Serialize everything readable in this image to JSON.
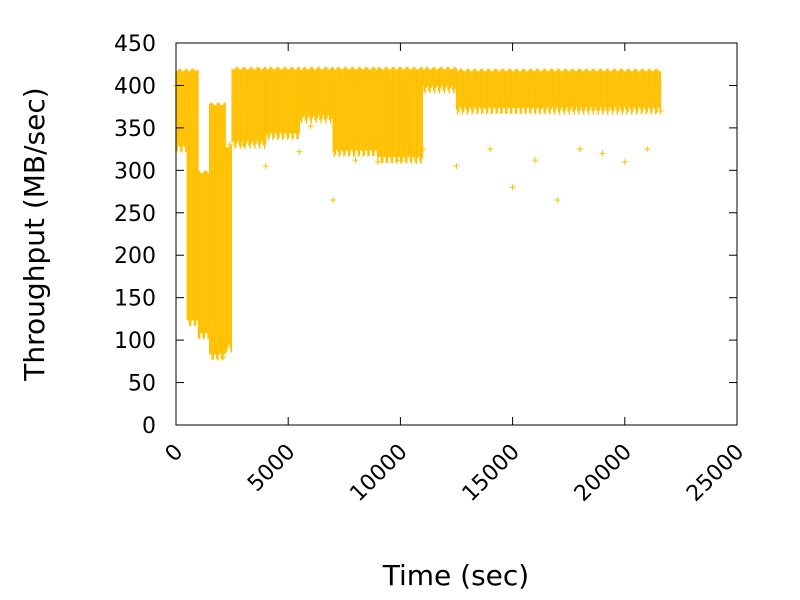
{
  "chart_data": {
    "type": "scatter",
    "title": "",
    "xlabel": "Time (sec)",
    "ylabel": "Throughput (MB/sec)",
    "xlim": [
      0,
      25000
    ],
    "ylim": [
      0,
      450
    ],
    "xticks": [
      0,
      5000,
      10000,
      15000,
      20000,
      25000
    ],
    "yticks": [
      0,
      50,
      100,
      150,
      200,
      250,
      300,
      350,
      400,
      450
    ],
    "xtick_labels": [
      "0",
      "5000",
      "10000",
      "15000",
      "20000",
      "25000"
    ],
    "ytick_labels": [
      "0",
      "50",
      "100",
      "150",
      "200",
      "250",
      "300",
      "350",
      "400",
      "450"
    ],
    "grid": false,
    "legend": "none",
    "marker": "plus",
    "series": [
      {
        "color": "#ffc000",
        "bands": [
          {
            "x": [
              0,
              500
            ],
            "low": 325,
            "high": 420
          },
          {
            "x": [
              500,
              1000
            ],
            "low": 120,
            "high": 420
          },
          {
            "x": [
              1000,
              1500
            ],
            "low": 105,
            "high": 300
          },
          {
            "x": [
              1500,
              2200
            ],
            "low": 80,
            "high": 380
          },
          {
            "x": [
              2200,
              2500
            ],
            "low": 90,
            "high": 330
          },
          {
            "x": [
              2500,
              4000
            ],
            "low": 330,
            "high": 422
          },
          {
            "x": [
              4000,
              5500
            ],
            "low": 340,
            "high": 422
          },
          {
            "x": [
              5500,
              7000
            ],
            "low": 360,
            "high": 422
          },
          {
            "x": [
              7000,
              9000
            ],
            "low": 320,
            "high": 422
          },
          {
            "x": [
              9000,
              11000
            ],
            "low": 312,
            "high": 422
          },
          {
            "x": [
              11000,
              12500
            ],
            "low": 395,
            "high": 422
          },
          {
            "x": [
              12500,
              21600
            ],
            "low": 370,
            "high": 420
          }
        ],
        "points": [
          {
            "x": 0,
            "y": 400
          },
          {
            "x": 250,
            "y": 330
          },
          {
            "x": 600,
            "y": 130
          },
          {
            "x": 900,
            "y": 415
          },
          {
            "x": 1200,
            "y": 110
          },
          {
            "x": 1500,
            "y": 220
          },
          {
            "x": 1800,
            "y": 85
          },
          {
            "x": 2100,
            "y": 80
          },
          {
            "x": 2400,
            "y": 330
          },
          {
            "x": 3000,
            "y": 330
          },
          {
            "x": 4000,
            "y": 305
          },
          {
            "x": 5000,
            "y": 345
          },
          {
            "x": 5500,
            "y": 322
          },
          {
            "x": 6000,
            "y": 352
          },
          {
            "x": 7000,
            "y": 265
          },
          {
            "x": 8000,
            "y": 312
          },
          {
            "x": 9000,
            "y": 310
          },
          {
            "x": 10000,
            "y": 312
          },
          {
            "x": 11000,
            "y": 325
          },
          {
            "x": 12500,
            "y": 305
          },
          {
            "x": 14000,
            "y": 325
          },
          {
            "x": 15000,
            "y": 280
          },
          {
            "x": 16000,
            "y": 312
          },
          {
            "x": 17000,
            "y": 265
          },
          {
            "x": 18000,
            "y": 325
          },
          {
            "x": 19000,
            "y": 320
          },
          {
            "x": 20000,
            "y": 310
          },
          {
            "x": 21000,
            "y": 325
          },
          {
            "x": 21600,
            "y": 370
          }
        ]
      }
    ]
  }
}
